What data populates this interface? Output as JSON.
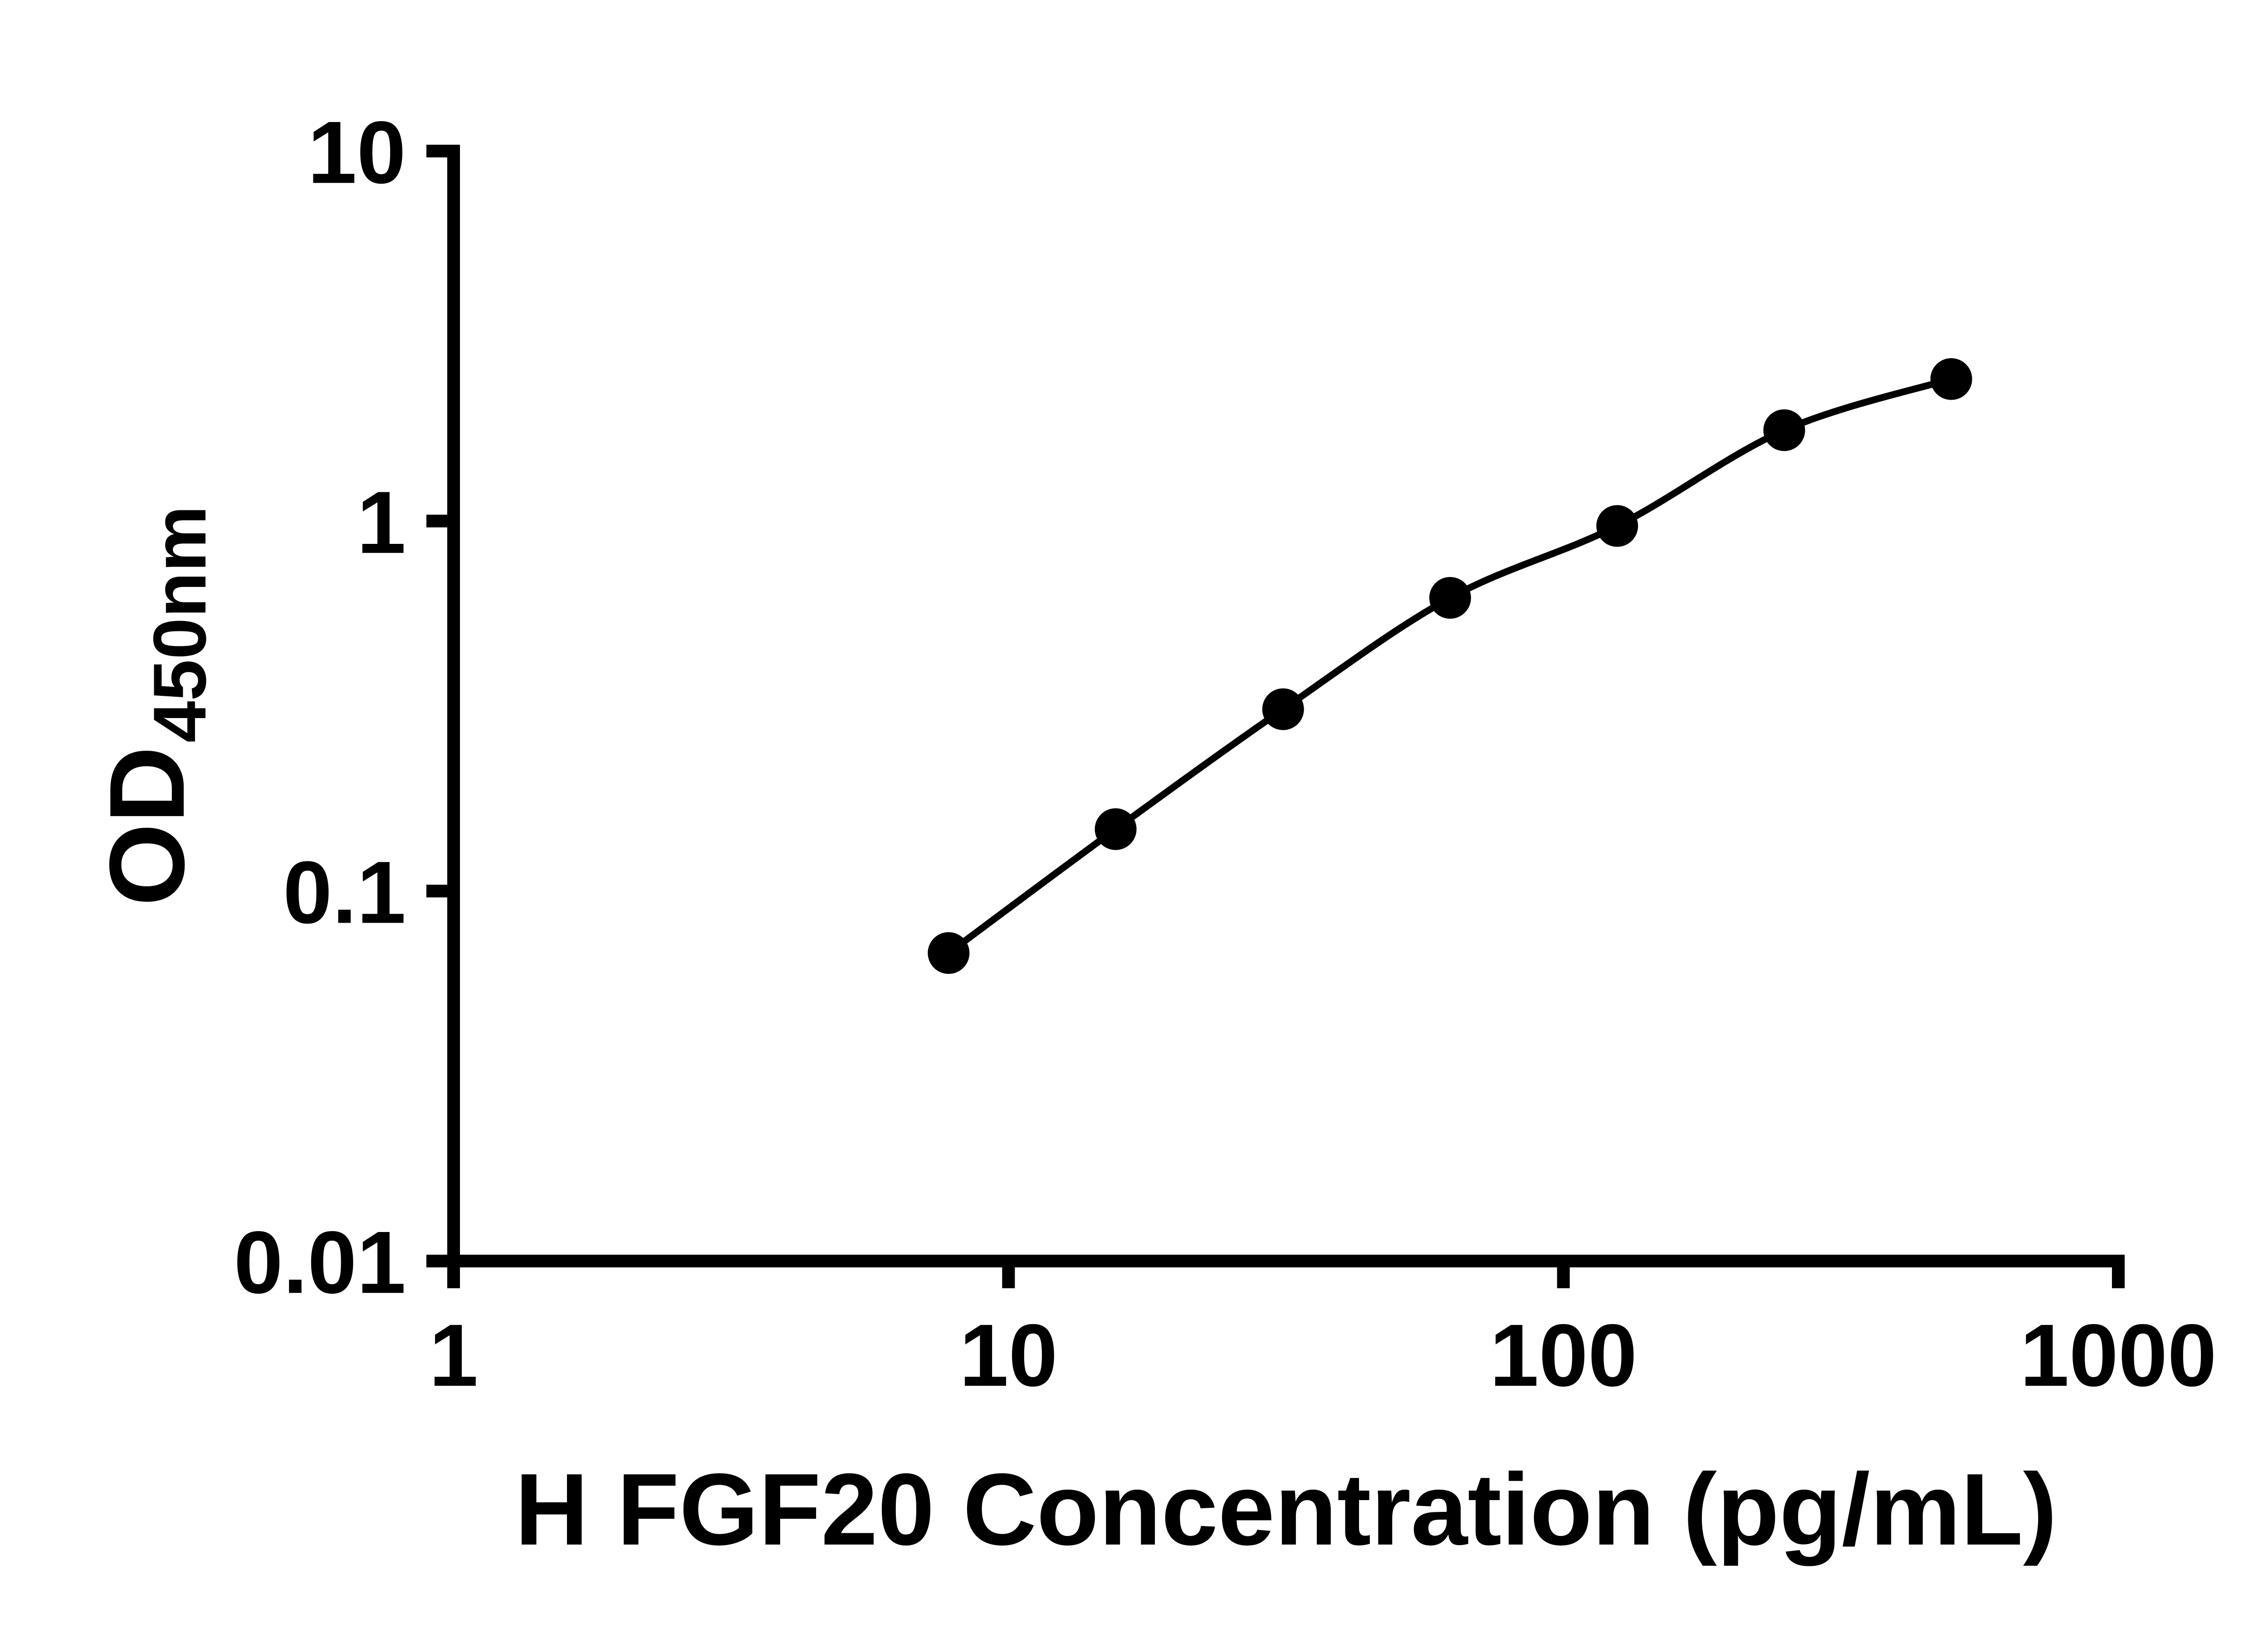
{
  "chart_data": {
    "type": "scatter-line",
    "title": "",
    "xlabel": "H FGF20 Concentration (pg/mL)",
    "ylabel_main": "OD",
    "ylabel_sub": "450nm",
    "xscale": "log",
    "yscale": "log",
    "xlim": [
      1,
      1000
    ],
    "ylim": [
      0.01,
      10
    ],
    "grid": false,
    "legend": null,
    "x_ticks": [
      {
        "value": 1,
        "label": "1"
      },
      {
        "value": 10,
        "label": "10"
      },
      {
        "value": 100,
        "label": "100"
      },
      {
        "value": 1000,
        "label": "1000"
      }
    ],
    "y_ticks": [
      {
        "value": 0.01,
        "label": "0.01"
      },
      {
        "value": 0.1,
        "label": "0.1"
      },
      {
        "value": 1,
        "label": "1"
      },
      {
        "value": 10,
        "label": "10"
      }
    ],
    "points": [
      {
        "x": 7.8,
        "y": 0.068
      },
      {
        "x": 15.6,
        "y": 0.147
      },
      {
        "x": 31.25,
        "y": 0.31
      },
      {
        "x": 62.5,
        "y": 0.62
      },
      {
        "x": 125,
        "y": 0.97
      },
      {
        "x": 250,
        "y": 1.76
      },
      {
        "x": 500,
        "y": 2.42
      }
    ],
    "colors": {
      "axis": "#000000",
      "line": "#000000",
      "marker": "#000000",
      "background": "#ffffff"
    }
  }
}
